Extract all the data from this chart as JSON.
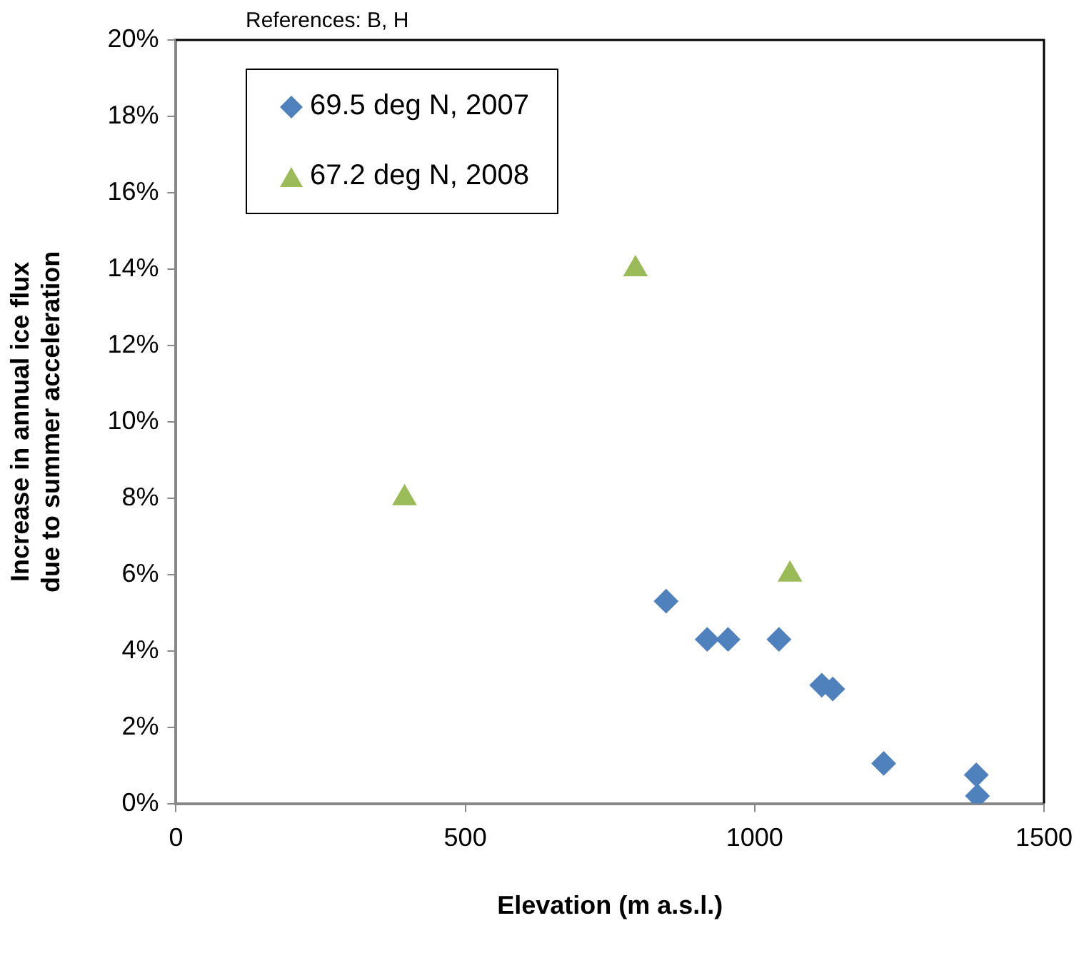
{
  "chart_data": {
    "type": "scatter",
    "xlabel": "Elevation (m a.s.l.)",
    "ylabel": "Increase in annual ice flux due to summer acceleration",
    "annotations": [
      "References: B, H"
    ],
    "xlim": [
      0,
      1500
    ],
    "xticks": [
      0,
      500,
      1000,
      1500
    ],
    "ylim": [
      0,
      20
    ],
    "yticks": [
      {
        "value": 0,
        "label": "0%"
      },
      {
        "value": 2,
        "label": "2%"
      },
      {
        "value": 4,
        "label": "4%"
      },
      {
        "value": 6,
        "label": "6%"
      },
      {
        "value": 8,
        "label": "8%"
      },
      {
        "value": 10,
        "label": "10%"
      },
      {
        "value": 12,
        "label": "12%"
      },
      {
        "value": 14,
        "label": "14%"
      },
      {
        "value": 16,
        "label": "16%"
      },
      {
        "value": 18,
        "label": "18%"
      },
      {
        "value": 20,
        "label": "20%"
      }
    ],
    "grid": false,
    "legend": "top left",
    "series": [
      {
        "name": "69.5 deg N, 2007",
        "color": "#4f81bd",
        "marker": "diamond",
        "x": [
          847,
          918,
          954,
          1042,
          1116,
          1135,
          1223,
          1383,
          1385
        ],
        "values": [
          5.3,
          4.3,
          4.3,
          4.3,
          3.1,
          3.0,
          1.05,
          0.75,
          0.2
        ]
      },
      {
        "name": "67.2 deg N, 2008",
        "color": "#9bbb59",
        "marker": "triangle",
        "x": [
          395,
          794,
          1061
        ],
        "values": [
          8.0,
          14.0,
          6.0
        ]
      }
    ]
  }
}
